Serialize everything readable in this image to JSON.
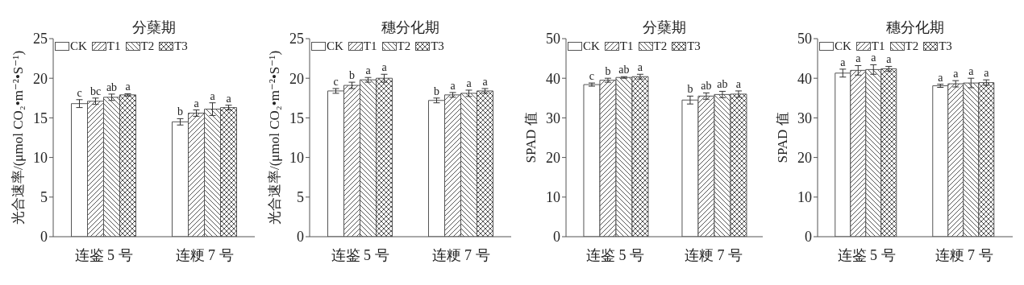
{
  "chart_data": [
    {
      "type": "bar",
      "title": "分蘖期",
      "ylabel": "光合速率/(μmol CO₂•m⁻²•S⁻¹)",
      "categories": [
        "连鉴 5 号",
        "连粳 7 号"
      ],
      "ylim": [
        0,
        25
      ],
      "yticks": [
        0,
        5,
        10,
        15,
        20,
        25
      ],
      "grid": false,
      "legend": "top",
      "series": [
        {
          "name": "CK",
          "color": "#ffffff",
          "values": [
            16.8,
            14.5
          ],
          "errors": [
            0.5,
            0.4
          ],
          "value_labels": [
            "c",
            "b"
          ]
        },
        {
          "name": "T1",
          "color": "#555555",
          "values": [
            17.1,
            15.6
          ],
          "errors": [
            0.4,
            0.4
          ],
          "value_labels": [
            "bc",
            "a"
          ]
        },
        {
          "name": "T2",
          "color": "#555555",
          "values": [
            17.6,
            16.1
          ],
          "errors": [
            0.4,
            0.8
          ],
          "value_labels": [
            "ab",
            "a"
          ]
        },
        {
          "name": "T3",
          "color": "#555555",
          "values": [
            17.9,
            16.3
          ],
          "errors": [
            0.15,
            0.3
          ],
          "value_labels": [
            "a",
            "a"
          ]
        }
      ]
    },
    {
      "type": "bar",
      "title": "穗分化期",
      "ylabel": "光合速率/(μmol CO₂•m⁻²•S⁻¹)",
      "categories": [
        "连鉴 5 号",
        "连粳 7 号"
      ],
      "ylim": [
        0,
        25
      ],
      "yticks": [
        0,
        5,
        10,
        15,
        20,
        25
      ],
      "grid": false,
      "legend": "top",
      "series": [
        {
          "name": "CK",
          "color": "#ffffff",
          "values": [
            18.4,
            17.2
          ],
          "errors": [
            0.3,
            0.3
          ],
          "value_labels": [
            "c",
            "b"
          ]
        },
        {
          "name": "T1",
          "color": "#555555",
          "values": [
            19.1,
            17.9
          ],
          "errors": [
            0.4,
            0.3
          ],
          "value_labels": [
            "b",
            "a"
          ]
        },
        {
          "name": "T2",
          "color": "#555555",
          "values": [
            19.8,
            18.1
          ],
          "errors": [
            0.3,
            0.4
          ],
          "value_labels": [
            "a",
            "a"
          ]
        },
        {
          "name": "T3",
          "color": "#555555",
          "values": [
            20.0,
            18.4
          ],
          "errors": [
            0.5,
            0.3
          ],
          "value_labels": [
            "a",
            "a"
          ]
        }
      ]
    },
    {
      "type": "bar",
      "title": "分蘖期",
      "ylabel": "SPAD 值",
      "categories": [
        "连鉴 5 号",
        "连粳 7 号"
      ],
      "ylim": [
        0,
        50
      ],
      "yticks": [
        0,
        10,
        20,
        30,
        40,
        50
      ],
      "grid": false,
      "legend": "top",
      "series": [
        {
          "name": "CK",
          "color": "#ffffff",
          "values": [
            38.4,
            34.5
          ],
          "errors": [
            0.4,
            1.0
          ],
          "value_labels": [
            "c",
            "b"
          ]
        },
        {
          "name": "T1",
          "color": "#555555",
          "values": [
            39.5,
            35.5
          ],
          "errors": [
            0.5,
            0.8
          ],
          "value_labels": [
            "b",
            "ab"
          ]
        },
        {
          "name": "T2",
          "color": "#555555",
          "values": [
            40.2,
            35.9
          ],
          "errors": [
            0.2,
            0.8
          ],
          "value_labels": [
            "ab",
            "ab"
          ]
        },
        {
          "name": "T3",
          "color": "#555555",
          "values": [
            40.4,
            36.0
          ],
          "errors": [
            0.6,
            0.8
          ],
          "value_labels": [
            "a",
            "a"
          ]
        }
      ]
    },
    {
      "type": "bar",
      "title": "穗分化期",
      "ylabel": "SPAD 值",
      "categories": [
        "连鉴 5 号",
        "连粳 7 号"
      ],
      "ylim": [
        0,
        50
      ],
      "yticks": [
        0,
        10,
        20,
        30,
        40,
        50
      ],
      "grid": false,
      "legend": "top",
      "series": [
        {
          "name": "CK",
          "color": "#ffffff",
          "values": [
            41.3,
            38.1
          ],
          "errors": [
            1.0,
            0.4
          ],
          "value_labels": [
            "a",
            "a"
          ]
        },
        {
          "name": "T1",
          "color": "#555555",
          "values": [
            42.0,
            38.6
          ],
          "errors": [
            1.2,
            0.8
          ],
          "value_labels": [
            "a",
            "a"
          ]
        },
        {
          "name": "T2",
          "color": "#555555",
          "values": [
            42.2,
            38.8
          ],
          "errors": [
            1.2,
            1.2
          ],
          "value_labels": [
            "a",
            "a"
          ]
        },
        {
          "name": "T3",
          "color": "#555555",
          "values": [
            42.4,
            38.9
          ],
          "errors": [
            0.6,
            0.7
          ],
          "value_labels": [
            "a",
            "a"
          ]
        }
      ]
    }
  ]
}
